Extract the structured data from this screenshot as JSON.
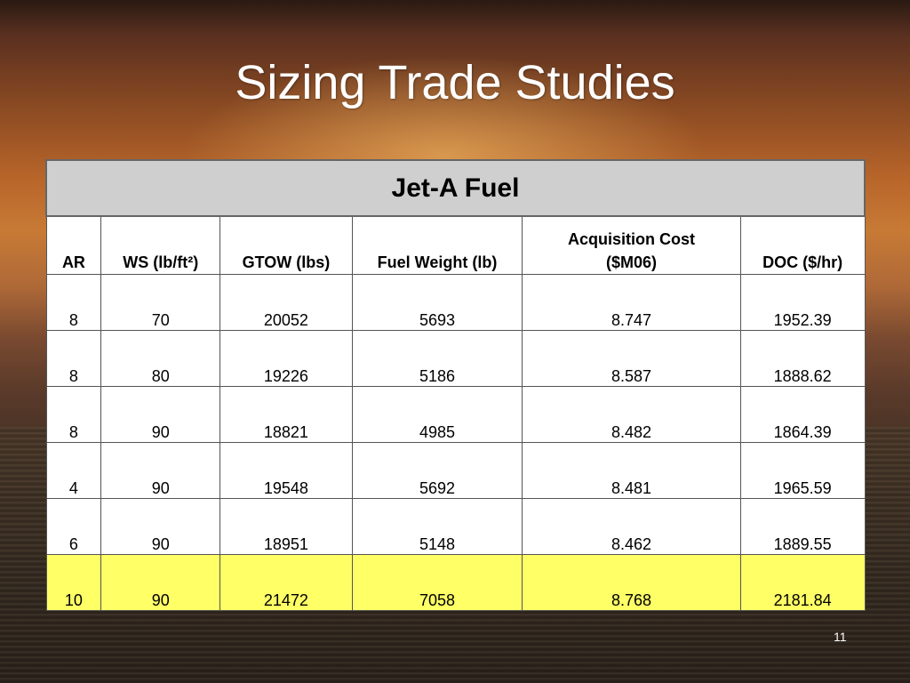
{
  "slide": {
    "title": "Sizing Trade Studies",
    "page_number": "11"
  },
  "table": {
    "caption": "Jet-A Fuel",
    "headers": [
      "AR",
      "WS (lb/ft²)",
      "GTOW (lbs)",
      "Fuel Weight (lb)",
      "Acquisition Cost ($M06)",
      "DOC ($/hr)"
    ],
    "header_acq_line1": "Acquisition Cost",
    "header_acq_line2": "($M06)",
    "rows": [
      [
        "8",
        "70",
        "20052",
        "5693",
        "8.747",
        "1952.39"
      ],
      [
        "8",
        "80",
        "19226",
        "5186",
        "8.587",
        "1888.62"
      ],
      [
        "8",
        "90",
        "18821",
        "4985",
        "8.482",
        "1864.39"
      ],
      [
        "4",
        "90",
        "19548",
        "5692",
        "8.481",
        "1965.59"
      ],
      [
        "6",
        "90",
        "18951",
        "5148",
        "8.462",
        "1889.55"
      ],
      [
        "10",
        "90",
        "21472",
        "7058",
        "8.768",
        "2181.84"
      ]
    ],
    "highlighted_row_index": 5,
    "highlight_color": "#ffff66",
    "caption_bg_color": "#cfcfcf"
  }
}
